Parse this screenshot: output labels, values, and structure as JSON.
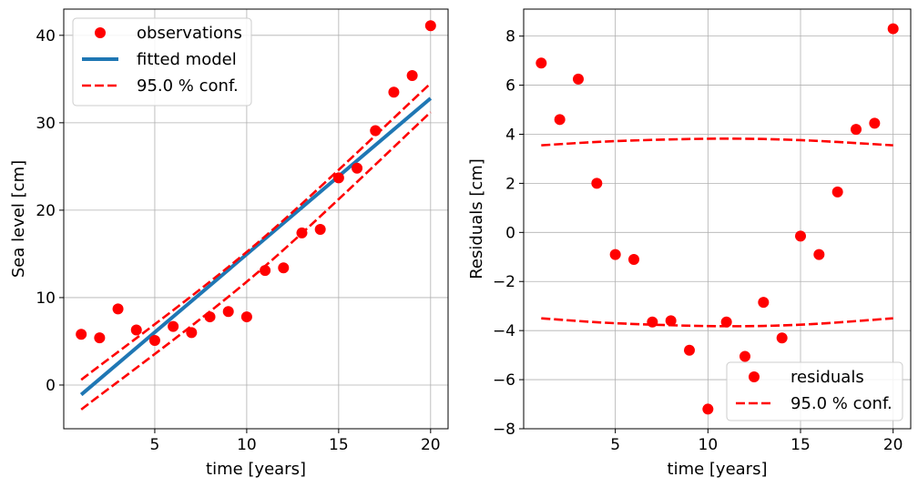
{
  "chart_data": [
    {
      "type": "scatter",
      "xlabel": "time [years]",
      "ylabel": "Sea level [cm]",
      "xlim": [
        0.05,
        20.95
      ],
      "ylim": [
        -5,
        43
      ],
      "xticks": [
        5,
        10,
        15,
        20
      ],
      "yticks": [
        0,
        10,
        20,
        30,
        40
      ],
      "grid": true,
      "legend_position": "top-left",
      "series": [
        {
          "name": "observations",
          "kind": "points",
          "color": "#ff0000",
          "x": [
            1,
            2,
            3,
            4,
            5,
            6,
            7,
            8,
            9,
            10,
            11,
            12,
            13,
            14,
            15,
            16,
            17,
            18,
            19,
            20
          ],
          "y": [
            5.8,
            5.4,
            8.7,
            6.3,
            5.1,
            6.7,
            6.0,
            7.8,
            8.4,
            7.8,
            13.1,
            13.4,
            17.4,
            17.8,
            23.7,
            24.8,
            29.1,
            33.5,
            35.4,
            41.1
          ]
        },
        {
          "name": "fitted model",
          "kind": "line",
          "color": "#1f77b4",
          "x": [
            1,
            20
          ],
          "y": [
            -1.1,
            32.8
          ]
        },
        {
          "name": "95.0 % conf.",
          "kind": "dashed",
          "color": "#ff0000",
          "upper": {
            "x": [
              1,
              10.5,
              20
            ],
            "y": [
              0.6,
              16.1,
              34.5
            ]
          },
          "lower": {
            "x": [
              1,
              10.5,
              20
            ],
            "y": [
              -2.8,
              12.7,
              31.2
            ]
          }
        }
      ]
    },
    {
      "type": "scatter",
      "xlabel": "time [years]",
      "ylabel": "Residuals [cm]",
      "xlim": [
        0.05,
        20.95
      ],
      "ylim": [
        -8,
        9.1
      ],
      "xticks": [
        5,
        10,
        15,
        20
      ],
      "yticks": [
        -8,
        -6,
        -4,
        -2,
        0,
        2,
        4,
        6,
        8
      ],
      "ytick_labels": [
        "−8",
        "−6",
        "−4",
        "−2",
        "0",
        "2",
        "4",
        "6",
        "8"
      ],
      "grid": true,
      "legend_position": "bottom-right",
      "series": [
        {
          "name": "residuals",
          "kind": "points",
          "color": "#ff0000",
          "x": [
            1,
            2,
            3,
            4,
            5,
            6,
            7,
            8,
            9,
            10,
            11,
            12,
            13,
            14,
            15,
            16,
            17,
            18,
            19,
            20
          ],
          "y": [
            6.9,
            4.6,
            6.25,
            2.0,
            -0.9,
            -1.1,
            -3.65,
            -3.6,
            -4.8,
            -7.2,
            -3.65,
            -5.05,
            -2.85,
            -4.3,
            -0.15,
            -0.9,
            1.65,
            4.2,
            4.45,
            8.3
          ]
        },
        {
          "name": "95.0 % conf.",
          "kind": "dashed",
          "color": "#ff0000",
          "upper": {
            "x": [
              1,
              5,
              10.5,
              15,
              20
            ],
            "y": [
              3.55,
              3.72,
              3.82,
              3.76,
              3.55
            ]
          },
          "lower": {
            "x": [
              1,
              5,
              10.5,
              15,
              20
            ],
            "y": [
              -3.5,
              -3.7,
              -3.82,
              -3.76,
              -3.5
            ]
          }
        }
      ]
    }
  ]
}
